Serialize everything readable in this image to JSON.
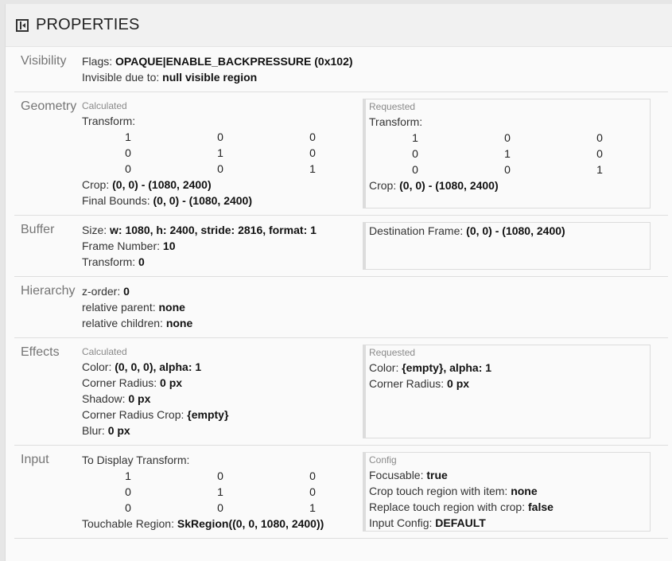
{
  "header": {
    "title": "PROPERTIES",
    "icon": "sidebar-collapse-icon"
  },
  "sections": [
    {
      "label": "Visibility",
      "left": {
        "lines": [
          {
            "k": "Flags: ",
            "v": "OPAQUE|ENABLE_BACKPRESSURE (0x102)"
          },
          {
            "k": "Invisible due to: ",
            "v": "null visible region"
          }
        ]
      }
    },
    {
      "label": "Geometry",
      "left": {
        "title": "Calculated",
        "lines": [
          {
            "k": "Transform:"
          },
          {
            "matrix": [
              [
                "1",
                "0",
                "0"
              ],
              [
                "0",
                "1",
                "0"
              ],
              [
                "0",
                "0",
                "1"
              ]
            ]
          },
          {
            "k": "Crop: ",
            "v": "(0, 0) - (1080, 2400)"
          },
          {
            "k": "Final Bounds: ",
            "v": "(0, 0) - (1080, 2400)"
          }
        ]
      },
      "right": {
        "title": "Requested",
        "lines": [
          {
            "k": "Transform:"
          },
          {
            "matrix": [
              [
                "1",
                "0",
                "0"
              ],
              [
                "0",
                "1",
                "0"
              ],
              [
                "0",
                "0",
                "1"
              ]
            ]
          },
          {
            "k": "Crop: ",
            "v": "(0, 0) - (1080, 2400)"
          }
        ]
      }
    },
    {
      "label": "Buffer",
      "left": {
        "lines": [
          {
            "k": "Size: ",
            "v": "w: 1080, h: 2400, stride: 2816, format: 1"
          },
          {
            "k": "Frame Number: ",
            "v": "10"
          },
          {
            "k": "Transform: ",
            "v": "0"
          }
        ]
      },
      "right": {
        "lines": [
          {
            "k": "Destination Frame: ",
            "v": "(0, 0) - (1080, 2400)"
          }
        ]
      }
    },
    {
      "label": "Hierarchy",
      "left": {
        "lines": [
          {
            "k": "z-order: ",
            "v": "0"
          },
          {
            "k": "relative parent: ",
            "v": "none"
          },
          {
            "k": "relative children: ",
            "v": "none"
          }
        ]
      }
    },
    {
      "label": "Effects",
      "left": {
        "title": "Calculated",
        "lines": [
          {
            "k": "Color: ",
            "v": "(0, 0, 0), alpha: 1"
          },
          {
            "k": "Corner Radius: ",
            "v": "0 px"
          },
          {
            "k": "Shadow: ",
            "v": "0 px"
          },
          {
            "k": "Corner Radius Crop: ",
            "v": "{empty}"
          },
          {
            "k": "Blur: ",
            "v": "0 px"
          }
        ]
      },
      "right": {
        "title": "Requested",
        "lines": [
          {
            "k": "Color: ",
            "v": "{empty}, alpha: 1"
          },
          {
            "k": "Corner Radius: ",
            "v": "0 px"
          }
        ]
      }
    },
    {
      "label": "Input",
      "left": {
        "lines": [
          {
            "k": "To Display Transform:"
          },
          {
            "matrix": [
              [
                "1",
                "0",
                "0"
              ],
              [
                "0",
                "1",
                "0"
              ],
              [
                "0",
                "0",
                "1"
              ]
            ]
          },
          {
            "k": "Touchable Region: ",
            "v": "SkRegion((0, 0, 1080, 2400))"
          }
        ]
      },
      "right": {
        "title": "Config",
        "lines": [
          {
            "k": "Focusable: ",
            "v": "true"
          },
          {
            "k": "Crop touch region with item: ",
            "v": "none"
          },
          {
            "k": "Replace touch region with crop: ",
            "v": "false"
          },
          {
            "k": "Input Config: ",
            "v": "DEFAULT"
          }
        ]
      }
    }
  ]
}
